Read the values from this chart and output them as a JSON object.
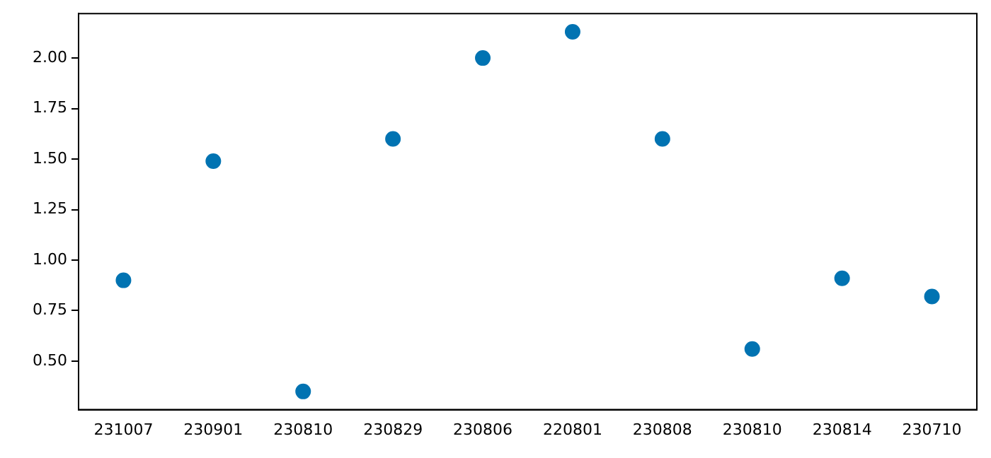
{
  "chart_data": {
    "type": "scatter",
    "categories": [
      "231007",
      "230901",
      "230810",
      "230829",
      "230806",
      "220801",
      "230808",
      "230810",
      "230814",
      "230710"
    ],
    "series": [
      {
        "color": "#0173b2",
        "values": [
          0.9,
          1.49,
          0.35,
          1.6,
          2.0,
          2.13,
          1.6,
          0.56,
          0.91,
          0.82
        ]
      }
    ],
    "ylim": [
      0.26,
      2.22
    ],
    "yticks": [
      {
        "value": 0.5,
        "label": "0.50"
      },
      {
        "value": 0.75,
        "label": "0.75"
      },
      {
        "value": 1.0,
        "label": "1.00"
      },
      {
        "value": 1.25,
        "label": "1.25"
      },
      {
        "value": 1.5,
        "label": "1.50"
      },
      {
        "value": 1.75,
        "label": "1.75"
      },
      {
        "value": 2.0,
        "label": "2.00"
      }
    ],
    "grid": false,
    "legend": false,
    "marker": "circle"
  }
}
